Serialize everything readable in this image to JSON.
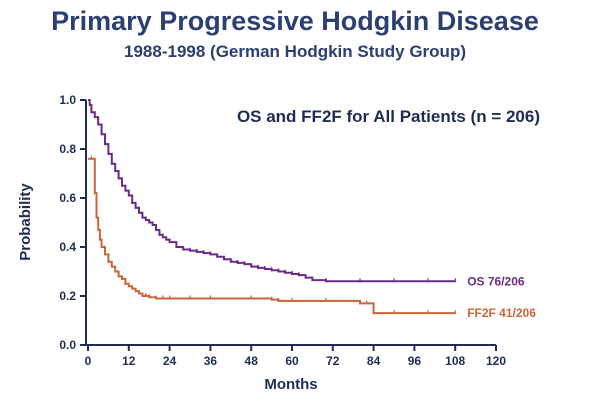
{
  "header": {
    "title": "Primary Progressive Hodgkin Disease",
    "subtitle": "1988-1998 (German Hodgkin Study Group)"
  },
  "chart_data": {
    "type": "line",
    "title": "Primary Progressive Hodgkin Disease",
    "subtitle": "1988-1998 (German Hodgkin Study Group)",
    "annotation": "OS and FF2F for All Patients (n = 206)",
    "xlabel": "Months",
    "ylabel": "Probability",
    "xlim": [
      0,
      120
    ],
    "ylim": [
      0,
      1.0
    ],
    "x_ticks": [
      "0",
      "12",
      "24",
      "36",
      "48",
      "60",
      "72",
      "84",
      "96",
      "108",
      "120"
    ],
    "x_tick_values": [
      0,
      12,
      24,
      36,
      48,
      60,
      72,
      84,
      96,
      108,
      120
    ],
    "y_ticks": [
      "0.0",
      "0.2",
      "0.4",
      "0.6",
      "0.8",
      "1.0"
    ],
    "y_tick_values": [
      0,
      0.2,
      0.4,
      0.6,
      0.8,
      1.0
    ],
    "grid": false,
    "legend": "labels at line ends",
    "series": [
      {
        "name": "OS 76/206",
        "color": "#6a2c86",
        "x": [
          0,
          0.5,
          1,
          2,
          3,
          4,
          5,
          6,
          7,
          8,
          9,
          10,
          11,
          12,
          13,
          14,
          15,
          16,
          17,
          18,
          19,
          20,
          21,
          22,
          23,
          24,
          26,
          28,
          30,
          32,
          34,
          36,
          38,
          40,
          42,
          44,
          46,
          48,
          50,
          52,
          54,
          56,
          58,
          60,
          62,
          64,
          66,
          70,
          80,
          90,
          100,
          108
        ],
        "y": [
          1.0,
          0.98,
          0.95,
          0.93,
          0.9,
          0.86,
          0.82,
          0.78,
          0.74,
          0.71,
          0.68,
          0.65,
          0.63,
          0.61,
          0.58,
          0.56,
          0.54,
          0.52,
          0.51,
          0.5,
          0.49,
          0.47,
          0.45,
          0.44,
          0.43,
          0.42,
          0.4,
          0.39,
          0.385,
          0.38,
          0.375,
          0.37,
          0.36,
          0.35,
          0.34,
          0.335,
          0.33,
          0.32,
          0.315,
          0.31,
          0.305,
          0.3,
          0.295,
          0.29,
          0.285,
          0.275,
          0.265,
          0.26,
          0.26,
          0.26,
          0.26,
          0.26
        ]
      },
      {
        "name": "FF2F 41/206",
        "color": "#c8663a",
        "x": [
          0,
          1,
          2,
          2.5,
          3,
          3.5,
          4,
          5,
          6,
          7,
          8,
          9,
          10,
          11,
          12,
          13,
          14,
          15,
          16,
          17,
          18,
          20,
          22,
          24,
          30,
          36,
          48,
          54,
          56,
          60,
          70,
          80,
          82,
          84,
          90,
          100,
          108
        ],
        "y": [
          0.76,
          0.76,
          0.62,
          0.52,
          0.47,
          0.43,
          0.4,
          0.37,
          0.34,
          0.32,
          0.3,
          0.28,
          0.27,
          0.25,
          0.24,
          0.23,
          0.22,
          0.21,
          0.2,
          0.2,
          0.195,
          0.19,
          0.19,
          0.19,
          0.19,
          0.19,
          0.19,
          0.185,
          0.18,
          0.18,
          0.18,
          0.17,
          0.17,
          0.13,
          0.13,
          0.13,
          0.13
        ]
      }
    ]
  }
}
